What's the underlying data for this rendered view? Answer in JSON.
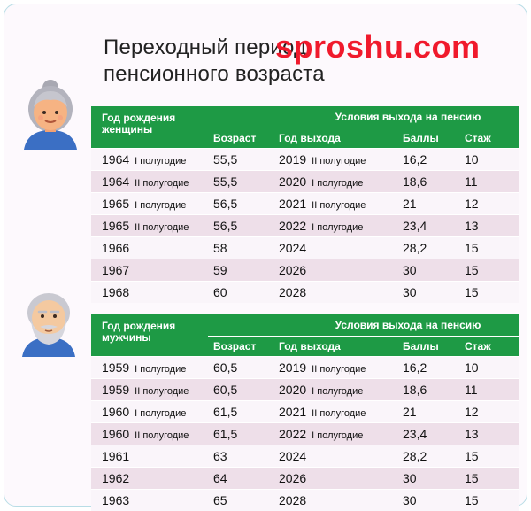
{
  "title_line1": "Переходный период",
  "title_line2": "пенсионного возраста",
  "watermark": "sproshu.com",
  "women_table": {
    "birth_header": "Год рождения женщины",
    "conditions_header": "Условия выхода на пенсию",
    "col_age": "Возраст",
    "col_year": "Год выхода",
    "col_points": "Баллы",
    "col_stage": "Стаж",
    "rows": [
      {
        "birth": "1964",
        "birth_half": "I полугодие",
        "age": "55,5",
        "exit": "2019",
        "exit_half": "II полугодие",
        "points": "16,2",
        "stage": "10"
      },
      {
        "birth": "1964",
        "birth_half": "II полугодие",
        "age": "55,5",
        "exit": "2020",
        "exit_half": "I полугодие",
        "points": "18,6",
        "stage": "11"
      },
      {
        "birth": "1965",
        "birth_half": "I полугодие",
        "age": "56,5",
        "exit": "2021",
        "exit_half": "II полугодие",
        "points": "21",
        "stage": "12"
      },
      {
        "birth": "1965",
        "birth_half": "II полугодие",
        "age": "56,5",
        "exit": "2022",
        "exit_half": "I полугодие",
        "points": "23,4",
        "stage": "13"
      },
      {
        "birth": "1966",
        "birth_half": "",
        "age": "58",
        "exit": "2024",
        "exit_half": "",
        "points": "28,2",
        "stage": "15"
      },
      {
        "birth": "1967",
        "birth_half": "",
        "age": "59",
        "exit": "2026",
        "exit_half": "",
        "points": "30",
        "stage": "15"
      },
      {
        "birth": "1968",
        "birth_half": "",
        "age": "60",
        "exit": "2028",
        "exit_half": "",
        "points": "30",
        "stage": "15"
      }
    ]
  },
  "men_table": {
    "birth_header": "Год рождения мужчины",
    "conditions_header": "Условия выхода на пенсию",
    "col_age": "Возраст",
    "col_year": "Год выхода",
    "col_points": "Баллы",
    "col_stage": "Стаж",
    "rows": [
      {
        "birth": "1959",
        "birth_half": "I полугодие",
        "age": "60,5",
        "exit": "2019",
        "exit_half": "II полугодие",
        "points": "16,2",
        "stage": "10"
      },
      {
        "birth": "1959",
        "birth_half": "II полугодие",
        "age": "60,5",
        "exit": "2020",
        "exit_half": "I полугодие",
        "points": "18,6",
        "stage": "11"
      },
      {
        "birth": "1960",
        "birth_half": "I полугодие",
        "age": "61,5",
        "exit": "2021",
        "exit_half": "II полугодие",
        "points": "21",
        "stage": "12"
      },
      {
        "birth": "1960",
        "birth_half": "II полугодие",
        "age": "61,5",
        "exit": "2022",
        "exit_half": "I полугодие",
        "points": "23,4",
        "stage": "13"
      },
      {
        "birth": "1961",
        "birth_half": "",
        "age": "63",
        "exit": "2024",
        "exit_half": "",
        "points": "28,2",
        "stage": "15"
      },
      {
        "birth": "1962",
        "birth_half": "",
        "age": "64",
        "exit": "2026",
        "exit_half": "",
        "points": "30",
        "stage": "15"
      },
      {
        "birth": "1963",
        "birth_half": "",
        "age": "65",
        "exit": "2028",
        "exit_half": "",
        "points": "30",
        "stage": "15"
      }
    ]
  },
  "colors": {
    "header_green": "#1e9a45",
    "row_pink": "#eedfe9",
    "watermark_red": "#f01a2c",
    "card_border": "#b8dde6"
  },
  "icons": {
    "woman_avatar": "elderly-woman-icon",
    "man_avatar": "elderly-man-icon"
  }
}
